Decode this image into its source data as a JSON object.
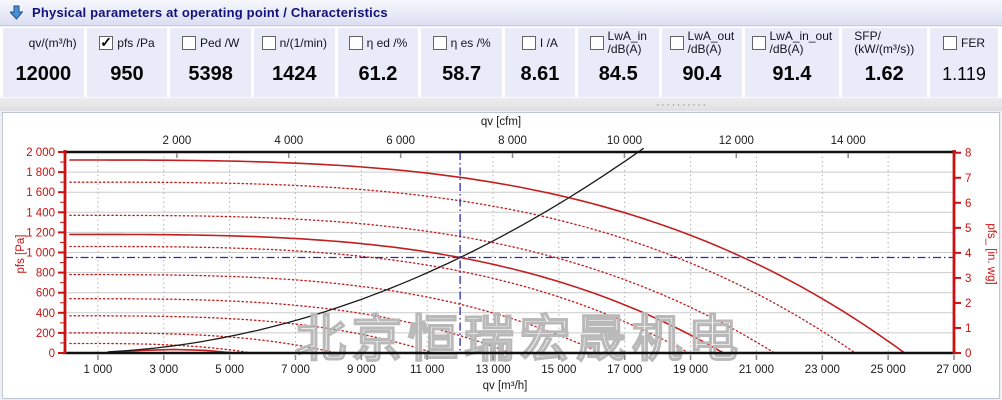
{
  "header": {
    "title": "Physical parameters at operating point / Characteristics",
    "icon": "blue-down-arrow",
    "icon_color": "#4a8fd4"
  },
  "splitter": {
    "grip": "··········"
  },
  "params": {
    "items": [
      {
        "label": "qv/(m³/h)",
        "value": "12000",
        "checkbox": false
      },
      {
        "label": "pfs /Pa",
        "value": "950",
        "checkbox": true,
        "checked": true
      },
      {
        "label": "Ped /W",
        "value": "5398",
        "checkbox": true,
        "checked": false
      },
      {
        "label": "n/(1/min)",
        "value": "1424",
        "checkbox": true,
        "checked": false
      },
      {
        "label": "η ed /%",
        "value": "61.2",
        "checkbox": true,
        "checked": false
      },
      {
        "label": "η es /%",
        "value": "58.7",
        "checkbox": true,
        "checked": false
      },
      {
        "label": "I /A",
        "value": "8.61",
        "checkbox": true,
        "checked": false
      },
      {
        "label": "LwA_in",
        "label2": "/dB(A)",
        "value": "84.5",
        "checkbox": true,
        "checked": false
      },
      {
        "label": "LwA_out",
        "label2": "/dB(A)",
        "value": "90.4",
        "checkbox": true,
        "checked": false
      },
      {
        "label": "LwA_in_out",
        "label2": "/dB(A)",
        "value": "91.4",
        "checkbox": true,
        "checked": false
      },
      {
        "label": "SFP/",
        "label2": "(kW/(m³/s))",
        "value": "1.62",
        "checkbox": false,
        "center": true
      },
      {
        "label": "FER",
        "value": "1.119",
        "checkbox": true,
        "checked": false,
        "value_light": true
      }
    ]
  },
  "chart_data": {
    "type": "line",
    "x_bottom": {
      "label": "qv [m³/h]",
      "min": 0,
      "max": 27000,
      "tick_start": 1000,
      "tick_step": 2000,
      "tick_end": 27000
    },
    "x_top": {
      "label": "qv [cfm]",
      "ticks": [
        2000,
        4000,
        6000,
        8000,
        10000,
        12000,
        14000
      ],
      "m3h_per_cfm": 1.699
    },
    "y_left": {
      "label": "pfs [Pa]",
      "min": 0,
      "max": 2000,
      "tick_step": 200
    },
    "y_right": {
      "label": "pfs_ [in. wg]",
      "min": 0,
      "max": 8,
      "tick_step": 1,
      "pa_per_unit": 249.08
    },
    "operating_point": {
      "qv_m3h": 12000,
      "pfs_pa": 950
    },
    "curve_exponent": 3.2,
    "fan_curves": [
      {
        "style": "solid",
        "p0_pa": 1920,
        "q_zero_m3h": 25500
      },
      {
        "style": "dotted",
        "p0_pa": 1700,
        "q_zero_m3h": 24000
      },
      {
        "style": "dotted",
        "p0_pa": 1370,
        "q_zero_m3h": 21550
      },
      {
        "style": "solid",
        "p0_pa": 1180,
        "q_zero_m3h": 20000
      },
      {
        "style": "dotted",
        "p0_pa": 1060,
        "q_zero_m3h": 18950
      },
      {
        "style": "dotted",
        "p0_pa": 780,
        "q_zero_m3h": 16260
      },
      {
        "style": "dotted",
        "p0_pa": 540,
        "q_zero_m3h": 13530
      },
      {
        "style": "dotted",
        "p0_pa": 370,
        "q_zero_m3h": 11200
      },
      {
        "style": "dotted",
        "p0_pa": 200,
        "q_zero_m3h": 8230
      },
      {
        "style": "dotted",
        "p0_pa": 95,
        "q_zero_m3h": 5670
      },
      {
        "style": "solid",
        "points": [
          [
            1400,
            5
          ],
          [
            2300,
            26
          ],
          [
            3300,
            36
          ],
          [
            4300,
            26
          ],
          [
            5150,
            0
          ]
        ]
      }
    ],
    "system_curve": {
      "q_ref": 12000,
      "p_ref": 950,
      "q_start": 1300,
      "p_clip": 2050
    },
    "colors": {
      "curve": "#c22020",
      "system": "#1a1a1a",
      "crosshair": "#2a2aad",
      "axis_red": "#cc1111",
      "axis_black": "#111111",
      "grid_h": "#cbcbcb",
      "grid_v": "#b2b2b2",
      "tick_label": "#1a1a1a",
      "watermark": "#b9b9b9"
    },
    "watermark": "北京恒瑞宏晟机电"
  }
}
